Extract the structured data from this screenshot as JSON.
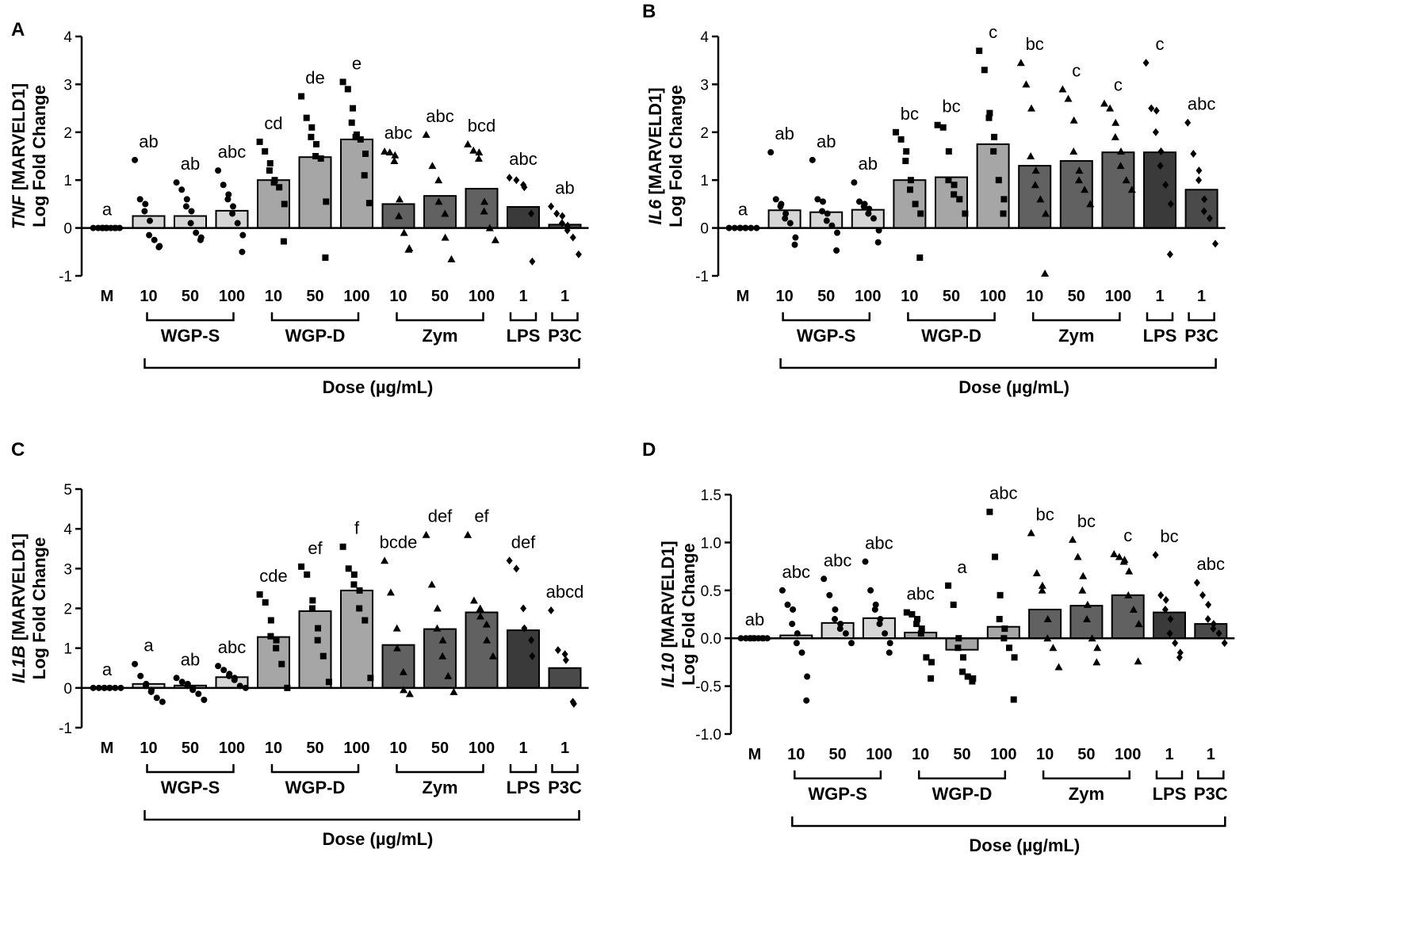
{
  "colors": {
    "M": "#ffffff",
    "WGP-S": "#d6d6d6",
    "WGP-D": "#a6a6a6",
    "Zym": "#616161",
    "LPS": "#3a3a3a",
    "P3C": "#4a4a4a"
  },
  "categories": [
    "M",
    "10",
    "50",
    "100",
    "10",
    "50",
    "100",
    "10",
    "50",
    "100",
    "1",
    "1"
  ],
  "category_groups": [
    "M",
    "WGP-S",
    "WGP-S",
    "WGP-S",
    "WGP-D",
    "WGP-D",
    "WGP-D",
    "Zym",
    "Zym",
    "Zym",
    "LPS",
    "P3C"
  ],
  "markers": [
    "circle",
    "circle",
    "circle",
    "circle",
    "square",
    "square",
    "square",
    "triangle",
    "triangle",
    "triangle",
    "diamond",
    "diamond"
  ],
  "group_labels": [
    "WGP-S",
    "WGP-D",
    "Zym",
    "LPS",
    "P3C"
  ],
  "xlabel": "Dose (µg/mL)",
  "ylabel_suffix": " [MARVELD1]",
  "ylabel_line2": "Log Fold Change",
  "chart_data": [
    {
      "panel": "A",
      "type": "bar",
      "gene": "TNF",
      "ylim": [
        -1,
        4
      ],
      "yticks": [
        -1,
        0,
        1,
        2,
        3,
        4
      ],
      "ytick_labels": [
        "-1",
        "0",
        "1",
        "2",
        "3",
        "4"
      ],
      "values": [
        0,
        0.25,
        0.25,
        0.36,
        1.0,
        1.48,
        1.85,
        0.5,
        0.67,
        0.82,
        0.44,
        0.07
      ],
      "letters": [
        "a",
        "ab",
        "ab",
        "abc",
        "cd",
        "de",
        "e",
        "abc",
        "abc",
        "bcd",
        "abc",
        "ab"
      ],
      "points": [
        [
          0,
          0,
          0,
          0,
          0,
          0,
          0,
          0,
          0,
          0
        ],
        [
          1.42,
          0.6,
          0.5,
          0.35,
          0.15,
          -0.15,
          -0.25,
          -0.38,
          -0.4
        ],
        [
          0.95,
          0.8,
          0.6,
          0.45,
          0.35,
          0.1,
          -0.1,
          -0.2,
          -0.25
        ],
        [
          1.2,
          0.9,
          0.7,
          0.6,
          0.45,
          0.3,
          0.1,
          -0.15,
          -0.5
        ],
        [
          1.8,
          1.6,
          1.35,
          1.2,
          1.0,
          0.95,
          0.85,
          0.5,
          -0.28
        ],
        [
          2.75,
          2.3,
          2.1,
          1.9,
          1.75,
          1.5,
          1.45,
          0.55,
          -0.62
        ],
        [
          3.05,
          2.9,
          2.5,
          2.2,
          1.95,
          1.9,
          1.85,
          1.55,
          1.1,
          0.52
        ],
        [
          1.6,
          1.58,
          1.52,
          1.4,
          0.6,
          0.25,
          -0.1,
          -0.42,
          -0.45
        ],
        [
          1.95,
          1.3,
          1.0,
          0.55,
          0.3,
          -0.2,
          -0.65
        ],
        [
          1.75,
          1.62,
          1.58,
          1.45,
          0.55,
          0.35,
          0.0,
          -0.25
        ],
        [
          1.05,
          1.0,
          0.9,
          0.85,
          0.3,
          -0.7
        ],
        [
          0.45,
          0.3,
          0.25,
          0.1,
          0.05,
          -0.05,
          -0.2,
          -0.55
        ]
      ]
    },
    {
      "panel": "B",
      "type": "bar",
      "gene": "IL6",
      "ylim": [
        -1,
        4
      ],
      "yticks": [
        -1,
        0,
        1,
        2,
        3,
        4
      ],
      "ytick_labels": [
        "-1",
        "0",
        "1",
        "2",
        "3",
        "4"
      ],
      "values": [
        0,
        0.37,
        0.33,
        0.38,
        1.0,
        1.06,
        1.75,
        1.3,
        1.4,
        1.58,
        1.58,
        0.8
      ],
      "letters": [
        "a",
        "ab",
        "ab",
        "ab",
        "bc",
        "bc",
        "c",
        "bc",
        "c",
        "c",
        "c",
        "abc"
      ],
      "points": [
        [
          0,
          0,
          0,
          0,
          0,
          0,
          0,
          0
        ],
        [
          1.58,
          0.6,
          0.5,
          0.45,
          0.3,
          0.2,
          0.1,
          -0.2,
          -0.35
        ],
        [
          1.42,
          0.6,
          0.55,
          0.35,
          0.3,
          0.15,
          0.05,
          -0.1,
          -0.47
        ],
        [
          0.95,
          0.55,
          0.5,
          0.45,
          0.4,
          0.3,
          0.2,
          -0.05,
          -0.3
        ],
        [
          2.0,
          1.85,
          1.6,
          1.4,
          1.0,
          0.8,
          0.5,
          0.3,
          -0.62
        ],
        [
          2.15,
          2.1,
          1.6,
          1.0,
          0.9,
          0.7,
          0.6,
          0.3
        ],
        [
          3.7,
          3.3,
          2.4,
          2.3,
          1.9,
          1.6,
          1.0,
          0.6,
          0.3
        ],
        [
          3.45,
          3.0,
          2.5,
          1.5,
          1.2,
          0.9,
          0.6,
          0.3,
          -0.95
        ],
        [
          2.9,
          2.7,
          2.25,
          1.6,
          1.2,
          1.0,
          0.8,
          0.5
        ],
        [
          2.6,
          2.5,
          2.2,
          1.9,
          1.6,
          1.3,
          1.0,
          0.8
        ],
        [
          3.45,
          2.5,
          2.45,
          2.0,
          1.6,
          1.3,
          0.9,
          0.5,
          -0.55
        ],
        [
          2.2,
          1.55,
          1.2,
          1.0,
          0.6,
          0.35,
          0.2,
          -0.33
        ]
      ]
    },
    {
      "panel": "C",
      "type": "bar",
      "gene": "IL1B",
      "ylim": [
        -1,
        5
      ],
      "yticks": [
        -1,
        0,
        1,
        2,
        3,
        4,
        5
      ],
      "ytick_labels": [
        "-1",
        "0",
        "1",
        "2",
        "3",
        "4",
        "5"
      ],
      "values": [
        0,
        0.1,
        0.06,
        0.27,
        1.28,
        1.93,
        2.45,
        1.08,
        1.48,
        1.9,
        1.45,
        0.5
      ],
      "letters": [
        "a",
        "a",
        "ab",
        "abc",
        "cde",
        "ef",
        "f",
        "bcde",
        "def",
        "ef",
        "def",
        "abcd"
      ],
      "points": [
        [
          0,
          0,
          0,
          0,
          0,
          0,
          0,
          0
        ],
        [
          0.6,
          0.3,
          0.1,
          0.05,
          -0.05,
          -0.1,
          -0.25,
          -0.35
        ],
        [
          0.25,
          0.15,
          0.1,
          0.05,
          0.0,
          -0.05,
          -0.15,
          -0.3
        ],
        [
          0.55,
          0.45,
          0.35,
          0.3,
          0.25,
          0.2,
          0.05,
          0.0
        ],
        [
          2.35,
          2.15,
          1.7,
          1.3,
          1.2,
          1.0,
          0.6,
          0.0
        ],
        [
          3.05,
          2.85,
          2.2,
          2.0,
          1.5,
          1.2,
          0.8,
          0.15
        ],
        [
          3.55,
          3.0,
          2.85,
          2.6,
          2.45,
          2.0,
          1.7,
          0.25
        ],
        [
          3.2,
          2.4,
          1.5,
          1.0,
          0.4,
          -0.05,
          -0.15
        ],
        [
          3.85,
          2.6,
          2.0,
          1.5,
          1.2,
          0.8,
          0.3,
          -0.1
        ],
        [
          3.85,
          2.2,
          2.0,
          1.8,
          1.6,
          1.2,
          0.8
        ],
        [
          3.2,
          3.0,
          2.0,
          1.5,
          1.2,
          0.8
        ],
        [
          1.95,
          0.95,
          0.85,
          0.7,
          -0.35,
          -0.4
        ]
      ]
    },
    {
      "panel": "D",
      "type": "bar",
      "gene": "IL10",
      "ylim": [
        -1.0,
        1.5
      ],
      "yticks": [
        -1.0,
        -0.5,
        0.0,
        0.5,
        1.0,
        1.5
      ],
      "ytick_labels": [
        "-1.0",
        "-0.5",
        "0.0",
        "0.5",
        "1.0",
        "1.5"
      ],
      "values": [
        0,
        0.03,
        0.16,
        0.21,
        0.06,
        -0.12,
        0.12,
        0.3,
        0.34,
        0.45,
        0.27,
        0.15
      ],
      "letters": [
        "ab",
        "abc",
        "abc",
        "abc",
        "abc",
        "a",
        "abc",
        "bc",
        "bc",
        "c",
        "bc",
        "abc"
      ],
      "points": [
        [
          0,
          0,
          0,
          0,
          0,
          0,
          0,
          0,
          0,
          0
        ],
        [
          0.5,
          0.35,
          0.3,
          0.15,
          0.05,
          -0.05,
          -0.15,
          -0.4,
          -0.65
        ],
        [
          0.62,
          0.45,
          0.3,
          0.2,
          0.15,
          0.1,
          0.05,
          -0.05
        ],
        [
          0.8,
          0.5,
          0.35,
          0.3,
          0.2,
          0.15,
          0.05,
          -0.05,
          -0.15
        ],
        [
          0.27,
          0.25,
          0.2,
          0.15,
          0.1,
          0.05,
          -0.2,
          -0.25,
          -0.42
        ],
        [
          0.55,
          0.35,
          0.0,
          -0.1,
          -0.2,
          -0.35,
          -0.4,
          -0.42,
          -0.45
        ],
        [
          1.32,
          0.85,
          0.45,
          0.2,
          0.1,
          0.0,
          -0.1,
          -0.2,
          -0.64
        ],
        [
          1.1,
          0.68,
          0.55,
          0.5,
          0.2,
          0.0,
          -0.1,
          -0.3
        ],
        [
          1.03,
          0.85,
          0.65,
          0.5,
          0.35,
          0.2,
          0.0,
          -0.1,
          -0.25
        ],
        [
          0.88,
          0.85,
          0.82,
          0.8,
          0.7,
          0.45,
          0.3,
          0.15,
          -0.24
        ],
        [
          0.87,
          0.45,
          0.4,
          0.3,
          0.2,
          0.05,
          -0.05,
          -0.15,
          -0.2
        ],
        [
          0.58,
          0.45,
          0.35,
          0.2,
          0.15,
          0.1,
          0.05,
          -0.05
        ]
      ]
    }
  ]
}
